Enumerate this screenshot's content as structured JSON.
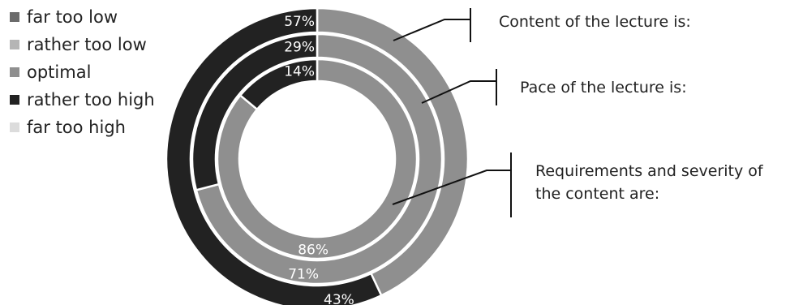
{
  "chart_data": {
    "type": "donut",
    "categories": [
      "far too low",
      "rather too low",
      "optimal",
      "rather too high",
      "far too high"
    ],
    "colors": {
      "far too low": "#6b6b6b",
      "rather too low": "#b5b5b5",
      "optimal": "#8f8f8f",
      "rather too high": "#222222",
      "far too high": "#dcdcdc"
    },
    "series": [
      {
        "name": "Content of the lecture is:",
        "values": {
          "far too low": 0,
          "rather too low": 0,
          "optimal": 43,
          "rather too high": 57,
          "far too high": 0
        },
        "labels": {
          "optimal": "43%",
          "rather too high": "57%"
        }
      },
      {
        "name": "Pace of the lecture is:",
        "values": {
          "far too low": 0,
          "rather too low": 0,
          "optimal": 71,
          "rather too high": 29,
          "far too high": 0
        },
        "labels": {
          "optimal": "71%",
          "rather too high": "29%"
        }
      },
      {
        "name": "Requirements and severity of the content are:",
        "values": {
          "far too low": 0,
          "rather too low": 0,
          "optimal": 86,
          "rather too high": 14,
          "far too high": 0
        },
        "labels": {
          "optimal": "86%",
          "rather too high": "14%"
        }
      }
    ],
    "ring_order": "outer-to-inner",
    "legend_position": "top-left"
  },
  "annotations": [
    {
      "ring": 0,
      "lines": [
        "Content of the lecture is:"
      ]
    },
    {
      "ring": 1,
      "lines": [
        "Pace of the lecture is:"
      ]
    },
    {
      "ring": 2,
      "lines": [
        "Requirements and severity of",
        "the content are:"
      ]
    }
  ]
}
